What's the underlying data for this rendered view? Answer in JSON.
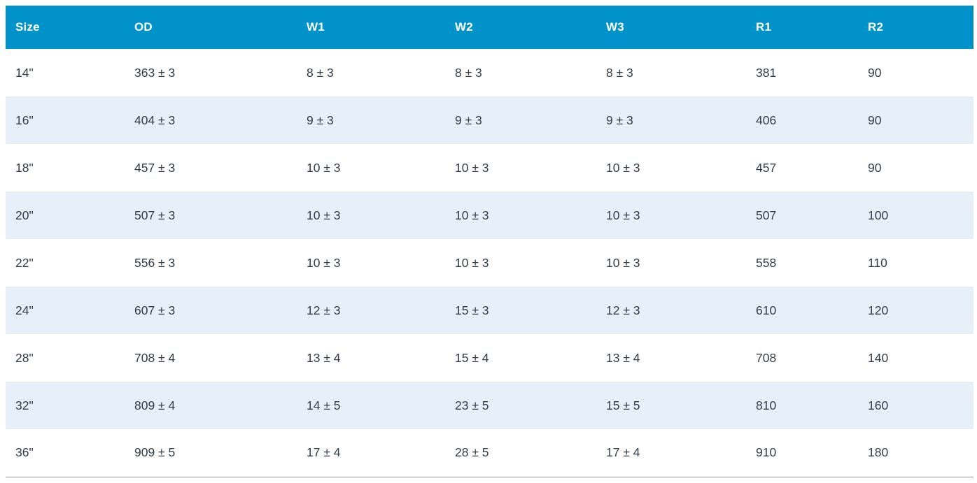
{
  "table": {
    "columns": [
      {
        "key": "size",
        "label": "Size"
      },
      {
        "key": "od",
        "label": "OD"
      },
      {
        "key": "w1",
        "label": "W1"
      },
      {
        "key": "w2",
        "label": "W2"
      },
      {
        "key": "w3",
        "label": "W3"
      },
      {
        "key": "r1",
        "label": "R1"
      },
      {
        "key": "r2",
        "label": "R2"
      }
    ],
    "rows": [
      [
        "14\"",
        "363 ± 3",
        "8 ± 3",
        "8 ± 3",
        "8 ± 3",
        "381",
        "90"
      ],
      [
        "16\"",
        "404 ± 3",
        "9 ± 3",
        "9 ± 3",
        "9 ± 3",
        "406",
        "90"
      ],
      [
        "18\"",
        "457 ± 3",
        "10 ± 3",
        "10 ± 3",
        "10 ± 3",
        "457",
        "90"
      ],
      [
        "20\"",
        "507 ± 3",
        "10 ± 3",
        "10 ± 3",
        "10 ± 3",
        "507",
        "100"
      ],
      [
        "22\"",
        "556 ± 3",
        "10 ± 3",
        "10 ± 3",
        "10 ± 3",
        "558",
        "110"
      ],
      [
        "24\"",
        "607 ± 3",
        "12 ± 3",
        "15 ± 3",
        "12 ± 3",
        "610",
        "120"
      ],
      [
        "28\"",
        "708 ± 4",
        "13 ± 4",
        "15 ± 4",
        "13 ± 4",
        "708",
        "140"
      ],
      [
        "32\"",
        "809 ± 4",
        "14 ± 5",
        "23 ± 5",
        "15 ± 5",
        "810",
        "160"
      ],
      [
        "36\"",
        "909 ± 5",
        "17 ± 4",
        "28 ± 5",
        "17 ± 4",
        "910",
        "180"
      ]
    ],
    "colors": {
      "header_bg": "#0092C9",
      "header_text": "#FFFFFF",
      "stripe_bg": "#E7F0F9",
      "row_bg": "#FFFFFF",
      "body_text": "#303C48",
      "bottom_border": "#8D9396"
    }
  },
  "chart_data": {
    "type": "table",
    "title": "",
    "columns": [
      "Size",
      "OD",
      "W1",
      "W2",
      "W3",
      "R1",
      "R2"
    ],
    "rows": [
      [
        "14\"",
        "363 ± 3",
        "8 ± 3",
        "8 ± 3",
        "8 ± 3",
        381,
        90
      ],
      [
        "16\"",
        "404 ± 3",
        "9 ± 3",
        "9 ± 3",
        "9 ± 3",
        406,
        90
      ],
      [
        "18\"",
        "457 ± 3",
        "10 ± 3",
        "10 ± 3",
        "10 ± 3",
        457,
        90
      ],
      [
        "20\"",
        "507 ± 3",
        "10 ± 3",
        "10 ± 3",
        "10 ± 3",
        507,
        100
      ],
      [
        "22\"",
        "556 ± 3",
        "10 ± 3",
        "10 ± 3",
        "10 ± 3",
        558,
        110
      ],
      [
        "24\"",
        "607 ± 3",
        "12 ± 3",
        "15 ± 3",
        "12 ± 3",
        610,
        120
      ],
      [
        "28\"",
        "708 ± 4",
        "13 ± 4",
        "15 ± 4",
        "13 ± 4",
        708,
        140
      ],
      [
        "32\"",
        "809 ± 4",
        "14 ± 5",
        "23 ± 5",
        "15 ± 5",
        810,
        160
      ],
      [
        "36\"",
        "909 ± 5",
        "17 ± 4",
        "28 ± 5",
        "17 ± 4",
        910,
        180
      ]
    ],
    "layout": {
      "striped_rows": true,
      "header_bg": "#0092C9",
      "stripe_bg": "#E7F0F9"
    }
  }
}
